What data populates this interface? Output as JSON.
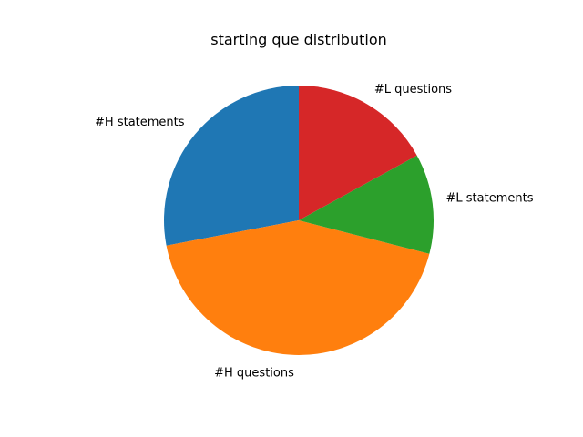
{
  "chart_data": {
    "type": "pie",
    "title": "starting que distribution",
    "start_angle_deg": 90,
    "direction": "counterclockwise",
    "slices": [
      {
        "label": "#H statements",
        "value": 28,
        "color": "#1f77b4"
      },
      {
        "label": "#H questions",
        "value": 43,
        "color": "#ff7f0e"
      },
      {
        "label": "#L statements",
        "value": 12,
        "color": "#2ca02c"
      },
      {
        "label": "#L questions",
        "value": 17,
        "color": "#d62728"
      }
    ]
  }
}
